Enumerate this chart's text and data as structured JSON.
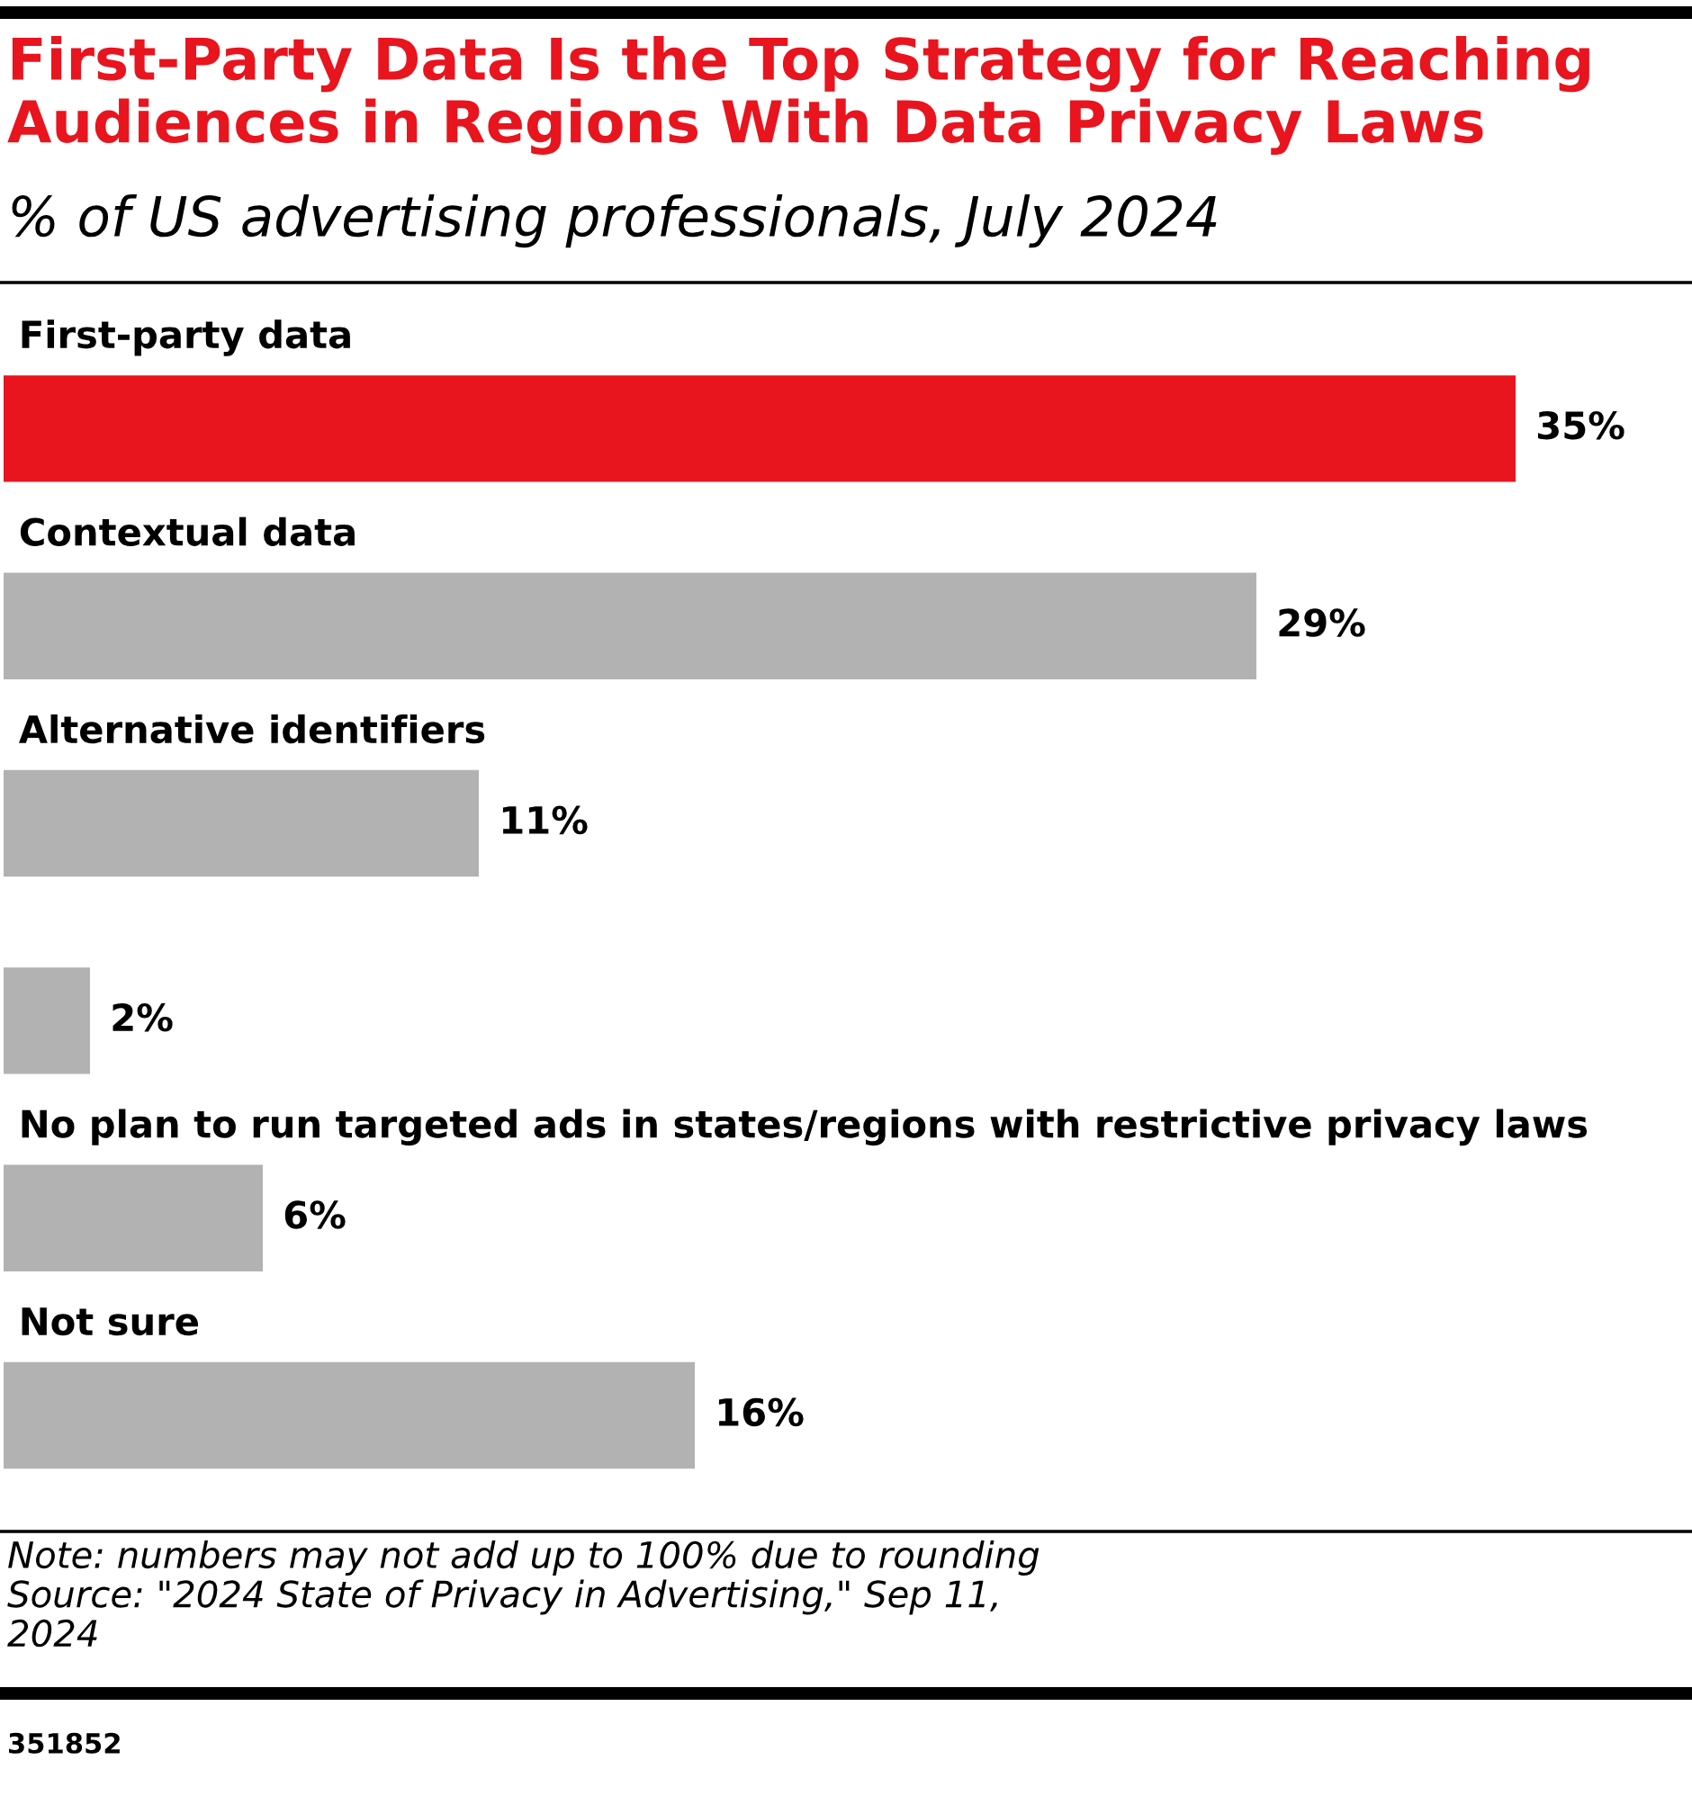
{
  "chart_data": {
    "type": "bar",
    "orientation": "horizontal",
    "title": "First-Party Data Is the Top Strategy for Reaching\nAudiences in Regions With Data Privacy Laws",
    "subtitle": "% of US advertising professionals, July 2024",
    "categories": [
      "First-party data",
      "Contextual data",
      "Alternative identifiers",
      null,
      "No plan to run targeted ads in states/regions with restrictive privacy laws",
      "Not sure"
    ],
    "values": [
      35,
      29,
      11,
      2,
      6,
      16
    ],
    "colors": [
      "#e8141e",
      "#b2b2b2",
      "#b2b2b2",
      "#b2b2b2",
      "#b2b2b2",
      "#b2b2b2"
    ],
    "value_labels": [
      "35%",
      "29%",
      "11%",
      "2%",
      "6%",
      "16%"
    ],
    "annotations": [
      "Note: numbers may not add up to 100% due to rounding\nSource: \"2024 State of Privacy in Advertising,\" Sep 11,\n2024",
      "351852"
    ],
    "data_labels": false
  }
}
